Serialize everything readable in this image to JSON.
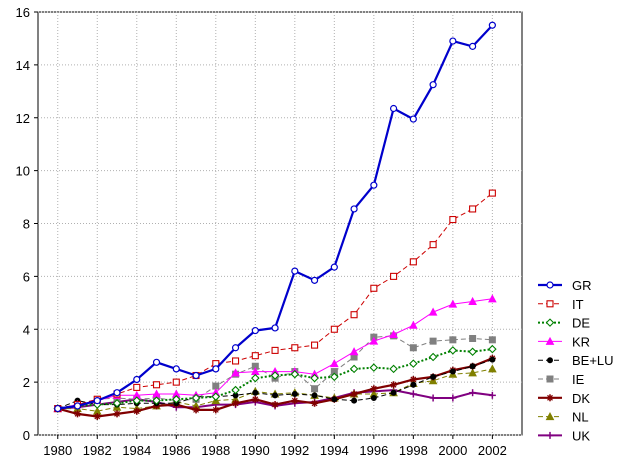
{
  "chart_data": {
    "type": "line",
    "title": "",
    "xlabel": "",
    "ylabel": "",
    "xlim": [
      1979,
      2003.5
    ],
    "ylim": [
      0,
      16
    ],
    "xticks": [
      1980,
      1982,
      1984,
      1986,
      1988,
      1990,
      1992,
      1994,
      1996,
      1998,
      2000,
      2002
    ],
    "yticks": [
      0,
      2,
      4,
      6,
      8,
      10,
      12,
      14,
      16
    ],
    "grid": true,
    "legend_position": "right",
    "x": [
      1980,
      1981,
      1982,
      1983,
      1984,
      1985,
      1986,
      1987,
      1988,
      1989,
      1990,
      1991,
      1992,
      1993,
      1994,
      1995,
      1996,
      1997,
      1998,
      1999,
      2000,
      2001,
      2002
    ],
    "series": [
      {
        "name": "GR",
        "color": "#0000cc",
        "line_style": "solid",
        "line_width": 2.2,
        "marker": "circle-open",
        "values": [
          1.0,
          1.1,
          1.3,
          1.6,
          2.1,
          2.75,
          2.5,
          2.25,
          2.5,
          3.3,
          3.95,
          4.05,
          6.2,
          5.85,
          6.35,
          8.55,
          9.45,
          12.35,
          11.95,
          13.25,
          14.9,
          14.7,
          15.5
        ]
      },
      {
        "name": "IT",
        "color": "#cc0000",
        "line_style": "dash",
        "line_width": 1,
        "marker": "square-open",
        "values": [
          1.0,
          1.15,
          1.35,
          1.55,
          1.8,
          1.9,
          2.0,
          2.25,
          2.7,
          2.8,
          3.0,
          3.2,
          3.3,
          3.4,
          4.0,
          4.55,
          5.55,
          6.0,
          6.55,
          7.2,
          8.15,
          8.55,
          9.15
        ]
      },
      {
        "name": "DE",
        "color": "#008000",
        "line_style": "dot",
        "line_width": 2,
        "marker": "diamond-open",
        "values": [
          1.0,
          1.1,
          1.15,
          1.2,
          1.3,
          1.3,
          1.35,
          1.4,
          1.45,
          1.7,
          2.15,
          2.25,
          2.3,
          2.15,
          2.2,
          2.5,
          2.55,
          2.5,
          2.7,
          2.95,
          3.2,
          3.15,
          3.25
        ]
      },
      {
        "name": "KR",
        "color": "#ff00ff",
        "line_style": "solid",
        "line_width": 1,
        "marker": "triangle",
        "values": [
          1.0,
          1.15,
          1.3,
          1.5,
          1.5,
          1.55,
          1.55,
          1.5,
          1.6,
          2.35,
          2.4,
          2.4,
          2.4,
          2.3,
          2.7,
          3.15,
          3.55,
          3.8,
          4.15,
          4.65,
          4.95,
          5.05,
          5.15
        ]
      },
      {
        "name": "BE+LU",
        "color": "#000000",
        "line_style": "dash",
        "line_width": 1,
        "marker": "circle-filled",
        "values": [
          1.0,
          1.3,
          1.15,
          1.15,
          1.2,
          1.2,
          1.2,
          1.45,
          1.45,
          1.5,
          1.6,
          1.5,
          1.55,
          1.5,
          1.35,
          1.3,
          1.4,
          1.6,
          1.9,
          2.2,
          2.4,
          2.6,
          2.85
        ]
      },
      {
        "name": "IE",
        "color": "#808080",
        "line_style": "dash",
        "line_width": 1,
        "marker": "square-filled",
        "values": [
          1.0,
          1.15,
          1.35,
          1.4,
          1.35,
          1.4,
          1.3,
          1.35,
          1.85,
          2.3,
          2.6,
          2.15,
          2.4,
          1.75,
          2.4,
          2.95,
          3.7,
          3.75,
          3.3,
          3.55,
          3.6,
          3.65,
          3.6
        ]
      },
      {
        "name": "DK",
        "color": "#800000",
        "line_style": "solid",
        "line_width": 2.2,
        "marker": "star",
        "values": [
          1.0,
          0.8,
          0.7,
          0.8,
          0.9,
          1.1,
          1.15,
          0.95,
          0.95,
          1.2,
          1.35,
          1.15,
          1.3,
          1.2,
          1.35,
          1.55,
          1.75,
          1.9,
          2.1,
          2.2,
          2.45,
          2.6,
          2.9
        ]
      },
      {
        "name": "NL",
        "color": "#808000",
        "line_style": "dash",
        "line_width": 1,
        "marker": "triangle-filled",
        "values": [
          1.0,
          1.0,
          0.9,
          1.05,
          1.0,
          1.1,
          1.25,
          1.1,
          1.3,
          1.35,
          1.65,
          1.55,
          1.6,
          1.5,
          1.4,
          1.55,
          1.55,
          1.6,
          1.95,
          2.05,
          2.3,
          2.35,
          2.5
        ]
      },
      {
        "name": "UK",
        "color": "#800080",
        "line_style": "solid",
        "line_width": 2,
        "marker": "plus",
        "values": [
          1.0,
          1.05,
          1.15,
          1.25,
          1.35,
          1.25,
          1.05,
          1.05,
          1.15,
          1.15,
          1.25,
          1.1,
          1.2,
          1.25,
          1.4,
          1.6,
          1.65,
          1.7,
          1.55,
          1.4,
          1.4,
          1.6,
          1.5
        ]
      }
    ]
  }
}
